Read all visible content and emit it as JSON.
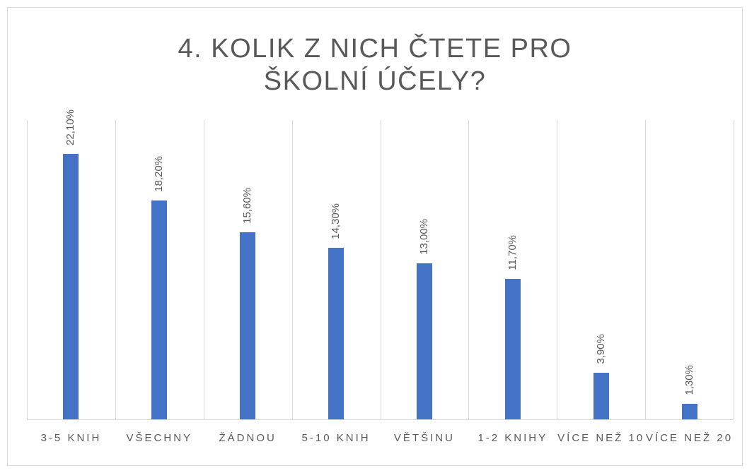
{
  "chart_data": {
    "type": "bar",
    "title": "4. KOLIK Z NICH ČTETE PRO ŠKOLNÍ ÚČELY?",
    "categories": [
      "3-5 KNIH",
      "VŠECHNY",
      "ŽÁDNOU",
      "5-10 KNIH",
      "VĚTŠINU",
      "1-2 KNIHY",
      "VÍCE NEŽ 10",
      "VÍCE NEŽ 20"
    ],
    "values": [
      22.1,
      18.2,
      15.6,
      14.3,
      13.0,
      11.7,
      3.9,
      1.3
    ],
    "value_labels": [
      "22,10%",
      "18,20%",
      "15,60%",
      "14,30%",
      "13,00%",
      "11,70%",
      "3,90%",
      "1,30%"
    ],
    "color": "#4472c4",
    "grid": true
  }
}
